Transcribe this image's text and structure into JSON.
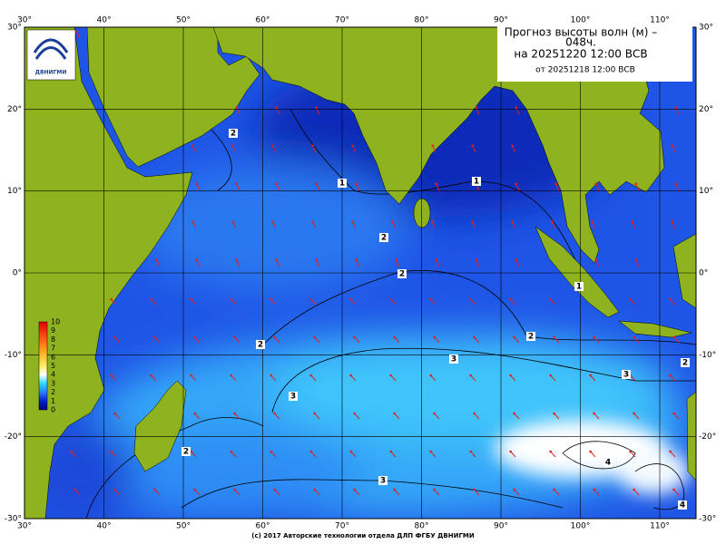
{
  "map": {
    "title_lines": [
      "Прогноз высоты волн (м) –",
      "048ч.",
      "на 20251220 12:00 ВСВ"
    ],
    "subtitle": "от 20251218 12:00 ВСВ",
    "logo_text": "ДВНИГМИ",
    "footer": "(c) 2017 Авторские технологии отдела ДЛП ФГБУ ДВНИГМИ",
    "lon_ticks": [
      {
        "value": 30,
        "label": "30°"
      },
      {
        "value": 40,
        "label": "40°"
      },
      {
        "value": 50,
        "label": "50°"
      },
      {
        "value": 60,
        "label": "60°"
      },
      {
        "value": 70,
        "label": "70°"
      },
      {
        "value": 80,
        "label": "80°"
      },
      {
        "value": 90,
        "label": "90°"
      },
      {
        "value": 100,
        "label": "100°"
      },
      {
        "value": 110,
        "label": "110°"
      }
    ],
    "lat_ticks": [
      {
        "value": 30,
        "label": "30°"
      },
      {
        "value": 20,
        "label": "20°"
      },
      {
        "value": 10,
        "label": "10°"
      },
      {
        "value": 0,
        "label": "0°"
      },
      {
        "value": -10,
        "label": "-10°"
      },
      {
        "value": -20,
        "label": "-20°"
      },
      {
        "value": -30,
        "label": "-30°"
      }
    ],
    "colorbar_ticks": [
      0,
      1,
      2,
      3,
      4,
      5,
      6,
      7,
      8,
      9,
      10
    ],
    "contour_labels": [
      "2",
      "1",
      "1",
      "2",
      "2",
      "1",
      "2",
      "2",
      "3",
      "3",
      "2",
      "3",
      "2",
      "4",
      "3",
      "4"
    ]
  }
}
